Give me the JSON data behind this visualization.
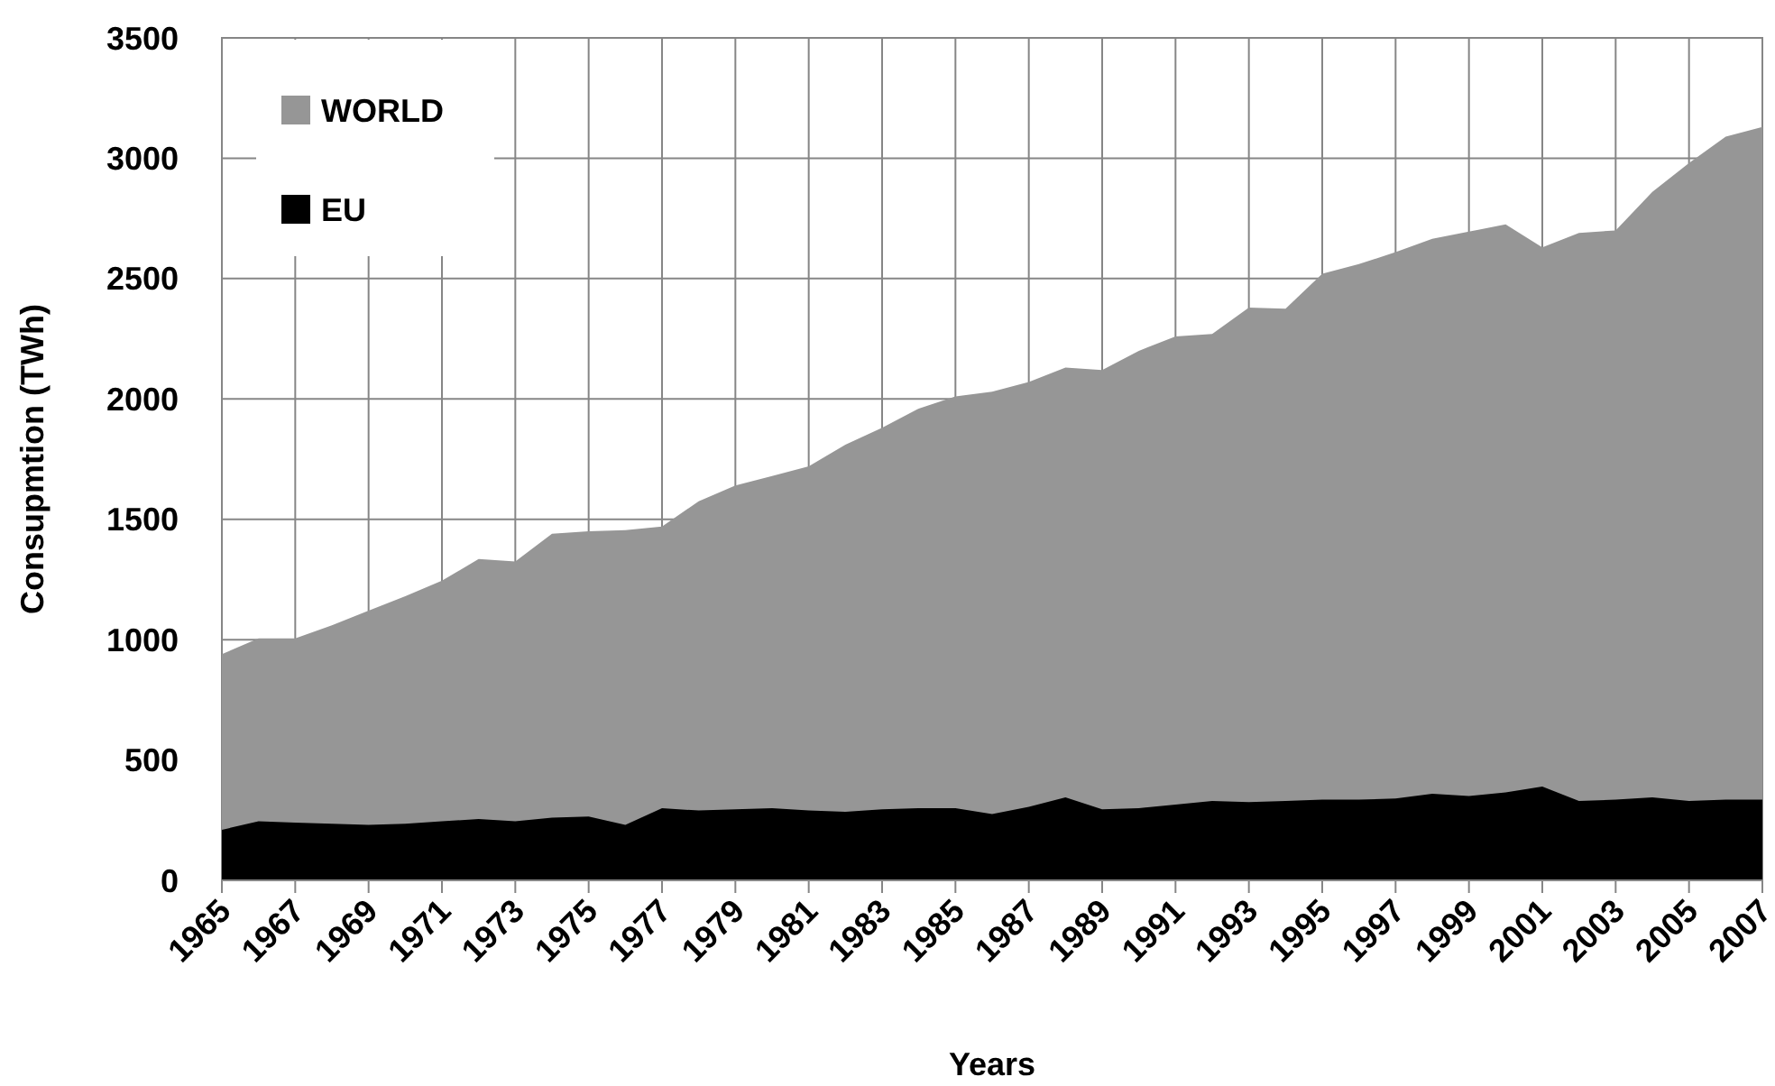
{
  "chart_data": {
    "type": "area",
    "xlabel": "Years",
    "ylabel": "Consupmtion (TWh)",
    "categories": [
      "1965",
      null,
      "1967",
      null,
      "1969",
      null,
      "1971",
      null,
      "1973",
      null,
      "1975",
      null,
      "1977",
      null,
      "1979",
      null,
      "1981",
      null,
      "1983",
      null,
      "1985",
      null,
      "1987",
      null,
      "1989",
      null,
      "1991",
      null,
      "1993",
      null,
      "1995",
      null,
      "1997",
      null,
      "1999",
      null,
      "2001",
      null,
      "2003",
      null,
      "2005",
      null,
      "2007"
    ],
    "series": [
      {
        "name": "WORLD",
        "color": "#969696",
        "values": [
          940,
          1005,
          1005,
          1060,
          1120,
          1180,
          1245,
          1335,
          1325,
          1440,
          1450,
          1455,
          1470,
          1575,
          1640,
          1680,
          1720,
          1810,
          1880,
          1960,
          2010,
          2030,
          2070,
          2130,
          2120,
          2200,
          2260,
          2270,
          2380,
          2375,
          2520,
          2560,
          2610,
          2665,
          2695,
          2725,
          2630,
          2690,
          2700,
          2860,
          2980,
          3090,
          3130
        ]
      },
      {
        "name": "EU",
        "color": "#000000",
        "values": [
          210,
          245,
          240,
          235,
          230,
          235,
          245,
          255,
          245,
          260,
          265,
          230,
          300,
          290,
          295,
          300,
          290,
          285,
          295,
          300,
          300,
          275,
          305,
          345,
          295,
          300,
          315,
          330,
          325,
          330,
          335,
          335,
          340,
          360,
          350,
          365,
          390,
          330,
          335,
          345,
          330,
          335,
          335
        ]
      }
    ],
    "ylim": [
      0,
      3500
    ],
    "yticks": [
      0,
      500,
      1000,
      1500,
      2000,
      2500,
      3000,
      3500
    ],
    "grid": true,
    "legend": "top left"
  }
}
